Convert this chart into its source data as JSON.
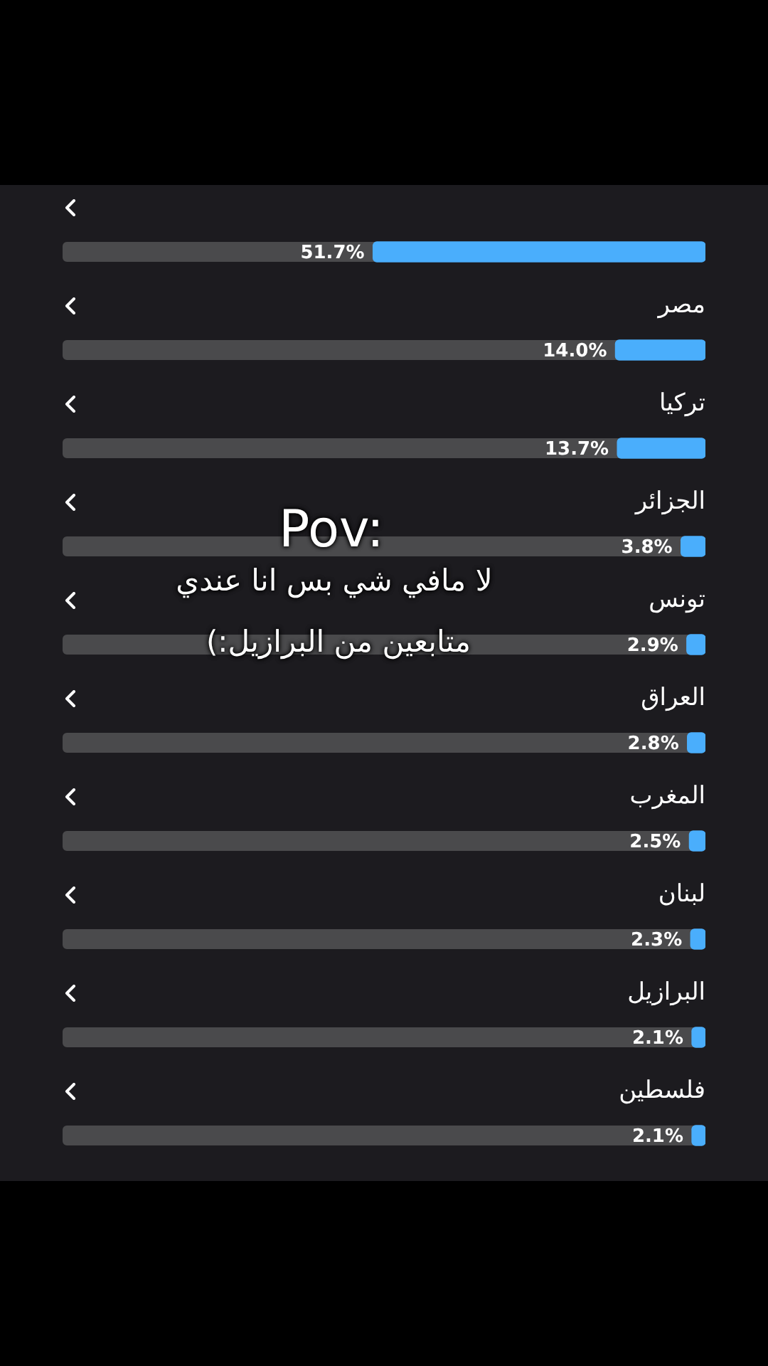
{
  "chart_data": {
    "type": "bar",
    "orientation": "horizontal",
    "tick_labels": false,
    "categories": [
      null,
      "مصر",
      "تركيا",
      "الجزائر",
      "تونس",
      "العراق",
      "المغرب",
      "لبنان",
      "البرازيل",
      "فلسطين"
    ],
    "values": [
      51.7,
      14.0,
      13.7,
      3.8,
      2.9,
      2.8,
      2.5,
      2.3,
      2.1,
      2.1
    ],
    "value_labels": [
      "51.7%",
      "14.0%",
      "13.7%",
      "3.8%",
      "2.9%",
      "2.8%",
      "2.5%",
      "2.3%",
      "2.1%",
      "2.1%"
    ],
    "color": "#4aaefc",
    "xlim": [
      100,
      0
    ],
    "annotations": [
      "Pov:",
      "لا مافي شي بس انا عندي",
      "متابعين من البرازيل:)"
    ]
  }
}
